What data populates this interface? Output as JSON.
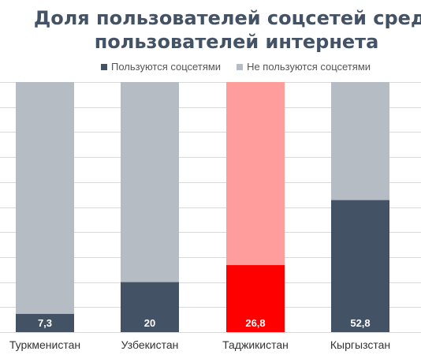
{
  "chart_data": {
    "type": "bar",
    "stacked": true,
    "title_lines": [
      "Доля пользователей соцсетей среди",
      "пользователей интернета"
    ],
    "categories": [
      "Туркменистан",
      "Узбекистан",
      "Таджикистан",
      "Кыргызстан"
    ],
    "series": [
      {
        "name": "Пользуются соцсетями",
        "values": [
          7.3,
          20,
          26.8,
          52.8
        ],
        "labels": [
          "7,3",
          "20",
          "26,8",
          "52,8"
        ]
      },
      {
        "name": "Не пользуются соцсетями",
        "values": [
          92.7,
          80,
          73.2,
          47.2
        ]
      }
    ],
    "ylim": [
      0,
      100
    ],
    "grid": true,
    "legend_position": "top",
    "colors": {
      "used": "#445266",
      "not_used": "#b6bcc4",
      "highlight_used": "#ff0000",
      "highlight_not_used": "#ff9d9d",
      "grid": "#d9d9d9"
    },
    "highlight_index": 2
  }
}
